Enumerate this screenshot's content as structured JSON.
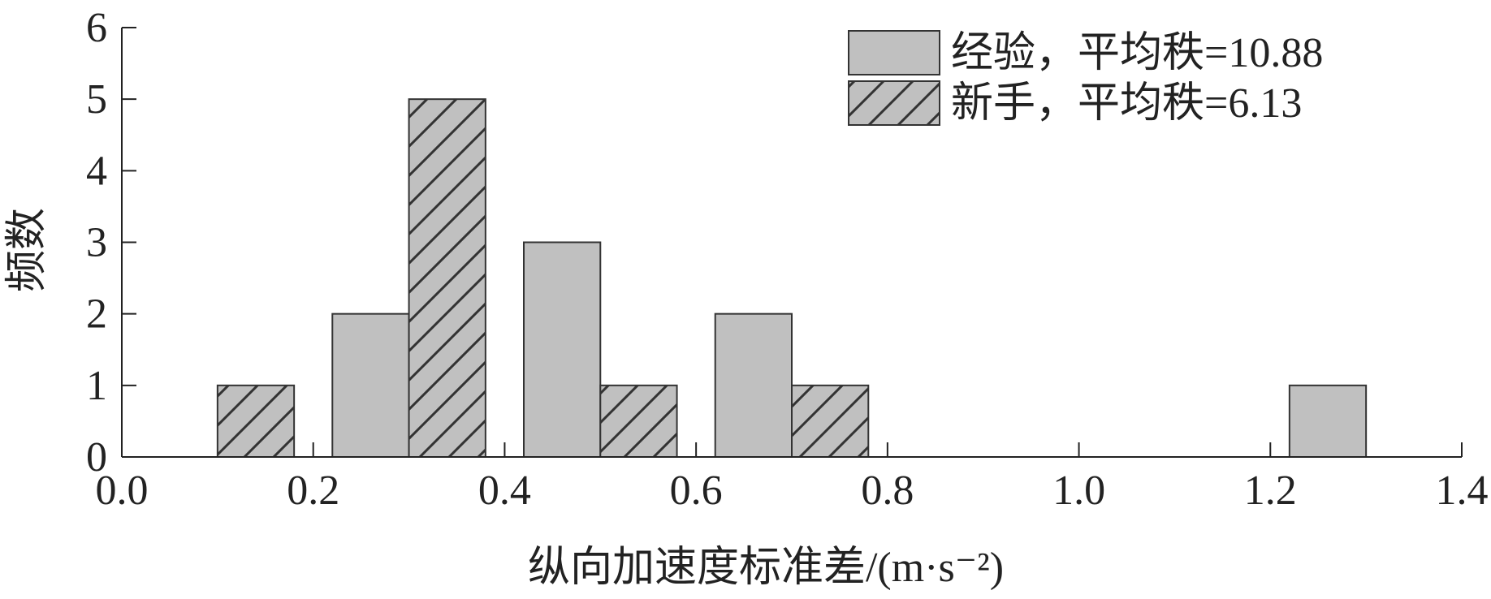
{
  "chart_data": {
    "type": "bar",
    "title": "",
    "xlabel": "纵向加速度标准差/(m·s⁻²)",
    "ylabel": "频数",
    "xlim": [
      0.0,
      1.4
    ],
    "ylim": [
      0,
      6
    ],
    "xticks": [
      "0.0",
      "0.2",
      "0.4",
      "0.6",
      "0.8",
      "1.0",
      "1.2",
      "1.4"
    ],
    "yticks": [
      "0",
      "1",
      "2",
      "3",
      "4",
      "5",
      "6"
    ],
    "bin_width": 0.08,
    "grid": false,
    "legend_position": "top-right",
    "colors": {
      "bar_fill": "#c0c0c0",
      "bar_stroke": "#333333",
      "hatch": "#333333"
    },
    "series": [
      {
        "name": "经验，平均秩=10.88",
        "pattern": "solid",
        "bins": [
          {
            "start": 0.22,
            "end": 0.3,
            "count": 2
          },
          {
            "start": 0.42,
            "end": 0.5,
            "count": 3
          },
          {
            "start": 0.62,
            "end": 0.7,
            "count": 2
          },
          {
            "start": 1.22,
            "end": 1.3,
            "count": 1
          }
        ]
      },
      {
        "name": "新手，平均秩=6.13",
        "pattern": "hatched",
        "bins": [
          {
            "start": 0.1,
            "end": 0.18,
            "count": 1
          },
          {
            "start": 0.3,
            "end": 0.38,
            "count": 5
          },
          {
            "start": 0.5,
            "end": 0.58,
            "count": 1
          },
          {
            "start": 0.7,
            "end": 0.78,
            "count": 1
          }
        ]
      }
    ]
  }
}
